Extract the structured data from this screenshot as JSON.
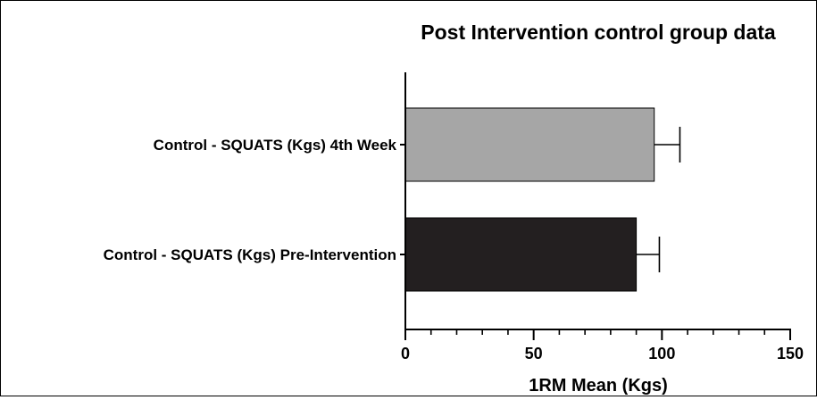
{
  "chart_data": {
    "type": "bar",
    "orientation": "horizontal",
    "title": "Post Intervention control group data",
    "xlabel": "1RM Mean (Kgs)",
    "ylabel": "",
    "xlim": [
      0,
      150
    ],
    "major_ticks": [
      0,
      50,
      100,
      150
    ],
    "minor_tick_step": 10,
    "grid": false,
    "categories": [
      "Control - SQUATS (Kgs) 4th Week",
      "Control - SQUATS (Kgs) Pre-Intervention"
    ],
    "values": [
      97,
      90
    ],
    "error": [
      10,
      9
    ],
    "colors": [
      "#a6a6a6",
      "#231f20"
    ]
  }
}
